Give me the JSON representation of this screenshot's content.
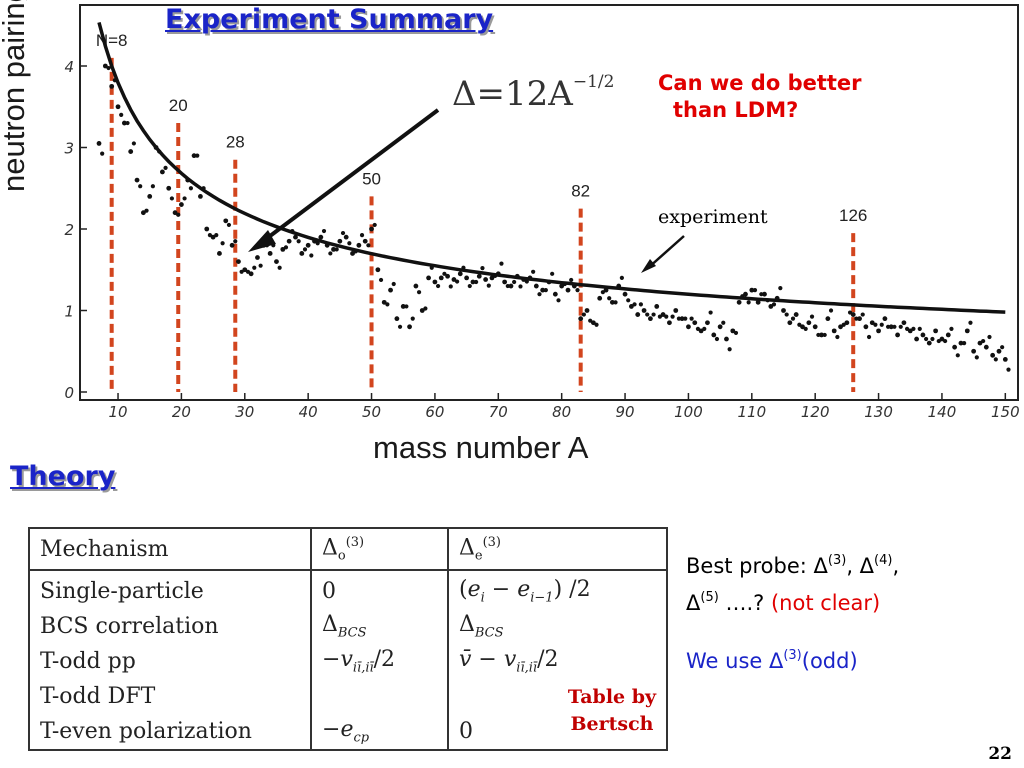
{
  "slide": {
    "title": "Experiment Summary",
    "section_title": "Theory",
    "page_number": "22",
    "question_line1": "Can we do better",
    "question_line2": "than LDM?",
    "experiment_label": "experiment",
    "formula_base": "Δ=12A",
    "formula_exp": "−1/2"
  },
  "chart_data": {
    "type": "scatter",
    "title": "Experiment Summary",
    "xlabel": "mass number A",
    "ylabel": "neutron pairing gap",
    "xlim": [
      4,
      152
    ],
    "ylim": [
      0,
      4.5
    ],
    "x_ticks": [
      10,
      20,
      30,
      40,
      50,
      60,
      70,
      80,
      90,
      100,
      110,
      120,
      130,
      140,
      150
    ],
    "y_ticks": [
      0,
      1,
      2,
      3,
      4
    ],
    "grid": false,
    "fit_curve": {
      "name": "Δ=12A^−1/2",
      "formula": "12/sqrt(A)"
    },
    "magic_lines": [
      {
        "label": "N=8",
        "x": 9,
        "top": 4.1
      },
      {
        "label": "20",
        "x": 19.5,
        "top": 3.3
      },
      {
        "label": "28",
        "x": 28.5,
        "top": 2.85
      },
      {
        "label": "50",
        "x": 50,
        "top": 2.4
      },
      {
        "label": "82",
        "x": 83,
        "top": 2.25
      },
      {
        "label": "126",
        "x": 126,
        "top": 1.95
      }
    ],
    "series": [
      {
        "name": "experiment",
        "points": [
          [
            7,
            3.05
          ],
          [
            8,
            4.0
          ],
          [
            9,
            3.75
          ],
          [
            10,
            3.5
          ],
          [
            11,
            3.3
          ],
          [
            12,
            2.95
          ],
          [
            13,
            2.6
          ],
          [
            14,
            2.2
          ],
          [
            15,
            2.4
          ],
          [
            16,
            3.0
          ],
          [
            17,
            2.7
          ],
          [
            18,
            2.5
          ],
          [
            19,
            2.2
          ],
          [
            20,
            2.3
          ],
          [
            21,
            2.6
          ],
          [
            22,
            2.9
          ],
          [
            23,
            2.4
          ],
          [
            24,
            2.0
          ],
          [
            25,
            1.9
          ],
          [
            26,
            1.7
          ],
          [
            27,
            2.1
          ],
          [
            28,
            1.8
          ],
          [
            29,
            1.6
          ],
          [
            30,
            1.5
          ],
          [
            31,
            1.45
          ],
          [
            32,
            1.65
          ],
          [
            33,
            1.8
          ],
          [
            34,
            1.7
          ],
          [
            35,
            1.6
          ],
          [
            36,
            1.75
          ],
          [
            37,
            1.85
          ],
          [
            38,
            1.9
          ],
          [
            39,
            1.7
          ],
          [
            40,
            1.8
          ],
          [
            41,
            1.85
          ],
          [
            42,
            1.9
          ],
          [
            43,
            1.8
          ],
          [
            44,
            1.75
          ],
          [
            45,
            1.85
          ],
          [
            46,
            1.9
          ],
          [
            47,
            1.7
          ],
          [
            48,
            1.8
          ],
          [
            49,
            1.85
          ],
          [
            50,
            2.0
          ],
          [
            51,
            1.5
          ],
          [
            52,
            1.1
          ],
          [
            53,
            1.25
          ],
          [
            54,
            0.9
          ],
          [
            55,
            1.05
          ],
          [
            56,
            0.8
          ],
          [
            57,
            1.3
          ],
          [
            58,
            1.0
          ],
          [
            59,
            1.4
          ],
          [
            60,
            1.35
          ],
          [
            61,
            1.4
          ],
          [
            62,
            1.42
          ],
          [
            63,
            1.38
          ],
          [
            64,
            1.45
          ],
          [
            65,
            1.4
          ],
          [
            66,
            1.35
          ],
          [
            67,
            1.42
          ],
          [
            68,
            1.38
          ],
          [
            69,
            1.4
          ],
          [
            70,
            1.45
          ],
          [
            71,
            1.35
          ],
          [
            72,
            1.3
          ],
          [
            73,
            1.42
          ],
          [
            74,
            1.38
          ],
          [
            75,
            1.4
          ],
          [
            76,
            1.3
          ],
          [
            77,
            1.25
          ],
          [
            78,
            1.35
          ],
          [
            79,
            1.2
          ],
          [
            80,
            1.3
          ],
          [
            81,
            1.25
          ],
          [
            82,
            1.3
          ],
          [
            83,
            0.9
          ],
          [
            84,
            1.0
          ],
          [
            85,
            0.85
          ],
          [
            86,
            1.15
          ],
          [
            87,
            1.25
          ],
          [
            88,
            1.1
          ],
          [
            89,
            1.3
          ],
          [
            90,
            1.2
          ],
          [
            91,
            1.05
          ],
          [
            92,
            0.95
          ],
          [
            93,
            1.0
          ],
          [
            94,
            0.9
          ],
          [
            95,
            1.05
          ],
          [
            96,
            0.95
          ],
          [
            97,
            0.85
          ],
          [
            98,
            1.0
          ],
          [
            99,
            0.9
          ],
          [
            100,
            0.8
          ],
          [
            101,
            0.85
          ],
          [
            102,
            0.75
          ],
          [
            103,
            0.85
          ],
          [
            104,
            0.7
          ],
          [
            105,
            0.8
          ],
          [
            106,
            0.65
          ],
          [
            107,
            0.75
          ],
          [
            108,
            1.1
          ],
          [
            109,
            1.2
          ],
          [
            110,
            1.25
          ],
          [
            111,
            1.1
          ],
          [
            112,
            1.2
          ],
          [
            113,
            1.05
          ],
          [
            114,
            1.15
          ],
          [
            115,
            1.0
          ],
          [
            116,
            0.85
          ],
          [
            117,
            0.95
          ],
          [
            118,
            0.8
          ],
          [
            119,
            0.85
          ],
          [
            120,
            0.8
          ],
          [
            121,
            0.7
          ],
          [
            122,
            0.9
          ],
          [
            123,
            0.75
          ],
          [
            124,
            0.8
          ],
          [
            125,
            0.85
          ],
          [
            126,
            0.95
          ],
          [
            127,
            0.9
          ],
          [
            128,
            0.8
          ],
          [
            129,
            0.85
          ],
          [
            130,
            0.75
          ],
          [
            131,
            0.9
          ],
          [
            132,
            0.8
          ],
          [
            133,
            0.7
          ],
          [
            134,
            0.85
          ],
          [
            135,
            0.75
          ],
          [
            136,
            0.65
          ],
          [
            137,
            0.7
          ],
          [
            138,
            0.6
          ],
          [
            139,
            0.75
          ],
          [
            140,
            0.65
          ],
          [
            141,
            0.7
          ],
          [
            142,
            0.55
          ],
          [
            143,
            0.6
          ],
          [
            144,
            0.75
          ],
          [
            145,
            0.5
          ],
          [
            146,
            0.6
          ],
          [
            147,
            0.55
          ],
          [
            148,
            0.45
          ],
          [
            149,
            0.5
          ],
          [
            150,
            0.4
          ]
        ]
      }
    ]
  },
  "table": {
    "headers": [
      "Mechanism",
      "Δ_o^(3)",
      "Δ_e^(3)"
    ],
    "rows": [
      [
        "Single-particle",
        "0",
        "(e_i − e_{i−1})/2"
      ],
      [
        "BCS correlation",
        "Δ_BCS",
        "Δ_BCS"
      ],
      [
        "T-odd pp",
        "−v_{iī,iī}/2",
        "v̄ − v_{iī,iī}/2"
      ],
      [
        "T-odd DFT",
        "",
        ""
      ],
      [
        "T-even polarization",
        "−e_cp",
        "0"
      ]
    ],
    "credit_line1": "Table by",
    "credit_line2": "Bertsch"
  },
  "side": {
    "probe_prefix": "Best probe: Δ",
    "probe_sup1": "(3)",
    "probe_mid1": ", Δ",
    "probe_sup2": "(4)",
    "probe_mid2": ",",
    "probe_line2_prefix": "Δ",
    "probe_sup3": "(5)",
    "probe_line2_text": " ….? ",
    "probe_unclear": "(not clear)",
    "use_prefix": "We use Δ",
    "use_sup": "(3)",
    "use_suffix": "(odd)"
  },
  "colors": {
    "title_blue": "#1a24c8",
    "magic_line": "#d2451e",
    "question_red": "#e00000",
    "credit_red": "#c00000"
  }
}
